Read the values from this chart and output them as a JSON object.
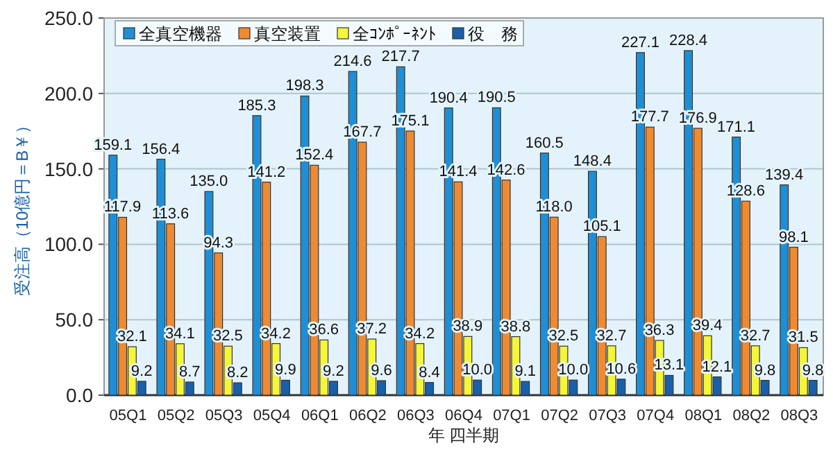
{
  "chart_data": {
    "type": "bar",
    "ylabel": "受注高（10億円＝B￥）",
    "xlabel": "年 四半期",
    "categories": [
      "05Q1",
      "05Q2",
      "05Q3",
      "05Q4",
      "06Q1",
      "06Q2",
      "06Q3",
      "06Q4",
      "07Q1",
      "07Q2",
      "07Q3",
      "07Q4",
      "08Q1",
      "08Q2",
      "08Q3"
    ],
    "series": [
      {
        "name": "全真空機器",
        "color": "#1e8fd6",
        "values": [
          159.1,
          156.4,
          135.0,
          185.3,
          198.3,
          214.6,
          217.7,
          190.4,
          190.5,
          160.5,
          148.4,
          227.1,
          228.4,
          171.1,
          139.4
        ],
        "value_labels": [
          "159.1",
          "156.4",
          "135.0",
          "185.3",
          "198.3",
          "214.6",
          "217.7",
          "190.4",
          "190.5",
          "160.5",
          "148.4",
          "227.1",
          "228.4",
          "171.1",
          "139.4"
        ]
      },
      {
        "name": "真空装置",
        "color": "#f08a30",
        "values": [
          117.9,
          113.6,
          94.3,
          141.2,
          152.4,
          167.7,
          175.1,
          141.4,
          142.6,
          118.0,
          105.1,
          177.7,
          176.9,
          128.6,
          98.1
        ],
        "value_labels": [
          "117.9",
          "113.6",
          "94.3",
          "141.2",
          "152.4",
          "167.7",
          "175.1",
          "141.4",
          "142.6",
          "118.0",
          "105.1",
          "177.7",
          "176.9",
          "128.6",
          "98.1"
        ]
      },
      {
        "name": "全ｺﾝﾎﾟｰﾈﾝﾄ",
        "color": "#f5f53a",
        "values": [
          32.1,
          34.1,
          32.5,
          34.2,
          36.6,
          37.2,
          34.2,
          38.9,
          38.8,
          32.5,
          32.7,
          36.3,
          39.4,
          32.7,
          31.5
        ],
        "value_labels": [
          "32.1",
          "34.1",
          "32.5",
          "34.2",
          "36.6",
          "37.2",
          "34.2",
          "38.9",
          "38.8",
          "32.5",
          "32.7",
          "36.3",
          "39.4",
          "32.7",
          "31.5"
        ]
      },
      {
        "name": "役　務",
        "color": "#1a5fa8",
        "values": [
          9.2,
          8.7,
          8.2,
          9.9,
          9.2,
          9.6,
          8.4,
          10.0,
          9.1,
          10.0,
          10.6,
          13.1,
          12.1,
          9.8,
          9.8
        ],
        "value_labels": [
          "9.2",
          "8.7",
          "8.2",
          "9.9",
          "9.2",
          "9.6",
          "8.4",
          "10.0",
          "9.1",
          "10.0",
          "10.6",
          "13.1",
          "12.1",
          "9.8",
          "9.8"
        ]
      }
    ],
    "ylim": [
      0,
      250
    ],
    "yticks": [
      {
        "value": 0,
        "label": "0.0"
      },
      {
        "value": 50,
        "label": "50.0"
      },
      {
        "value": 100,
        "label": "100.0"
      },
      {
        "value": 150,
        "label": "150.0"
      },
      {
        "value": 200,
        "label": "200.0"
      },
      {
        "value": 250,
        "label": "250.0"
      }
    ],
    "grid": "y",
    "legend": "top"
  }
}
